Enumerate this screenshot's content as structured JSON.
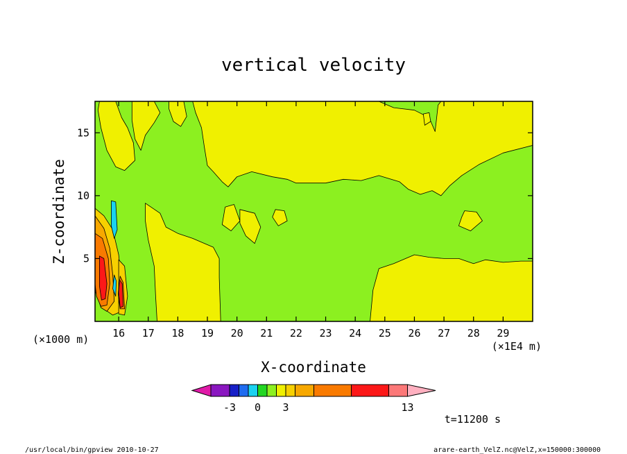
{
  "chart_data": {
    "type": "heatmap",
    "subtype": "filled-contour",
    "title": "vertical velocity",
    "xlabel": "X-coordinate",
    "ylabel": "Z-coordinate",
    "x_units_left": "(×1000 m)",
    "x_units_right": "(×1E4 m)",
    "xlim": [
      15.2,
      30.0
    ],
    "ylim": [
      0.0,
      17.5
    ],
    "x_ticks": [
      16,
      17,
      18,
      19,
      20,
      21,
      22,
      23,
      24,
      25,
      26,
      27,
      28,
      29
    ],
    "y_ticks": [
      5,
      10,
      15
    ],
    "time_label": "t=11200  s",
    "colorbar": {
      "colors": [
        "#e01aa8",
        "#8a17c0",
        "#1820c8",
        "#1f6cf0",
        "#1ad2f0",
        "#22d622",
        "#8cf020",
        "#f0f000",
        "#f7d000",
        "#f7a800",
        "#f97a00",
        "#fc1818",
        "#fc7878",
        "#ffb0c0"
      ],
      "widths": [
        2,
        2,
        1,
        1,
        1,
        1,
        1,
        1,
        1,
        2,
        4,
        4,
        2,
        3
      ],
      "labels": [
        {
          "text": "-3",
          "index": 2
        },
        {
          "text": "0",
          "index": 5
        },
        {
          "text": "3",
          "index": 8
        },
        {
          "text": "13",
          "index": 13
        }
      ]
    },
    "regions": [
      {
        "level": "0",
        "color": "#8cf020",
        "points": [
          [
            15.2,
            17.5
          ],
          [
            30,
            17.5
          ],
          [
            30,
            0
          ],
          [
            15.2,
            0
          ]
        ]
      },
      {
        "level": "0",
        "color": "#f0f000",
        "points": [
          [
            15.35,
            17.5
          ],
          [
            15.9,
            17.5
          ],
          [
            16.1,
            16.2
          ],
          [
            16.3,
            15.4
          ],
          [
            16.5,
            14.2
          ],
          [
            16.55,
            12.8
          ],
          [
            16.2,
            12.0
          ],
          [
            15.9,
            12.3
          ],
          [
            15.6,
            13.6
          ],
          [
            15.4,
            15.4
          ],
          [
            15.3,
            16.8
          ]
        ]
      },
      {
        "level": "0",
        "color": "#f0f000",
        "points": [
          [
            16.45,
            17.5
          ],
          [
            17.2,
            17.5
          ],
          [
            17.4,
            16.6
          ],
          [
            17.2,
            15.8
          ],
          [
            16.9,
            14.8
          ],
          [
            16.75,
            13.6
          ],
          [
            16.55,
            14.5
          ],
          [
            16.45,
            16.0
          ]
        ]
      },
      {
        "level": "0",
        "color": "#f0f000",
        "points": [
          [
            17.7,
            17.5
          ],
          [
            18.2,
            17.5
          ],
          [
            18.3,
            16.3
          ],
          [
            18.1,
            15.5
          ],
          [
            17.85,
            15.9
          ],
          [
            17.7,
            16.9
          ]
        ]
      },
      {
        "level": "0",
        "color": "#f0f000",
        "points": [
          [
            18.5,
            17.5
          ],
          [
            24.8,
            17.5
          ],
          [
            25.3,
            17.0
          ],
          [
            26.0,
            16.8
          ],
          [
            26.5,
            16.2
          ],
          [
            26.7,
            15.1
          ],
          [
            26.8,
            17.2
          ],
          [
            26.9,
            17.5
          ],
          [
            30,
            17.5
          ],
          [
            30,
            14.0
          ],
          [
            29.0,
            13.4
          ],
          [
            28.2,
            12.5
          ],
          [
            27.6,
            11.6
          ],
          [
            27.2,
            10.8
          ],
          [
            26.9,
            10.0
          ],
          [
            26.6,
            10.4
          ],
          [
            26.2,
            10.1
          ],
          [
            25.8,
            10.5
          ],
          [
            25.5,
            11.1
          ],
          [
            24.8,
            11.6
          ],
          [
            24.2,
            11.2
          ],
          [
            23.6,
            11.3
          ],
          [
            23.0,
            11.0
          ],
          [
            22.5,
            11.0
          ],
          [
            22.0,
            11.0
          ],
          [
            21.7,
            11.3
          ],
          [
            21.2,
            11.5
          ],
          [
            20.5,
            11.9
          ],
          [
            20.0,
            11.5
          ],
          [
            19.7,
            10.7
          ],
          [
            19.5,
            11.1
          ],
          [
            19.2,
            11.9
          ],
          [
            19.0,
            12.4
          ],
          [
            18.9,
            13.8
          ],
          [
            18.8,
            15.4
          ],
          [
            18.6,
            16.6
          ]
        ]
      },
      {
        "level": "0",
        "color": "#f0f000",
        "points": [
          [
            16.9,
            9.4
          ],
          [
            17.4,
            8.6
          ],
          [
            17.6,
            7.5
          ],
          [
            18.0,
            7.0
          ],
          [
            18.5,
            6.6
          ],
          [
            18.8,
            6.3
          ],
          [
            19.2,
            5.9
          ],
          [
            19.4,
            5.0
          ],
          [
            19.4,
            3.5
          ],
          [
            19.45,
            0
          ],
          [
            17.3,
            0
          ],
          [
            17.25,
            2.0
          ],
          [
            17.2,
            4.4
          ],
          [
            17.0,
            6.5
          ],
          [
            16.9,
            8.0
          ]
        ]
      },
      {
        "level": "0",
        "color": "#f0f000",
        "points": [
          [
            24.5,
            0
          ],
          [
            24.6,
            2.5
          ],
          [
            24.8,
            4.2
          ],
          [
            25.3,
            4.6
          ],
          [
            26.0,
            5.3
          ],
          [
            26.5,
            5.1
          ],
          [
            27.0,
            5.0
          ],
          [
            27.5,
            5.0
          ],
          [
            28.0,
            4.6
          ],
          [
            28.4,
            4.9
          ],
          [
            29.0,
            4.7
          ],
          [
            29.6,
            4.8
          ],
          [
            30,
            4.8
          ],
          [
            30,
            0
          ]
        ]
      },
      {
        "level": "0",
        "color": "#f0f000",
        "points": [
          [
            19.6,
            9.1
          ],
          [
            19.9,
            9.3
          ],
          [
            20.1,
            8.0
          ],
          [
            19.8,
            7.2
          ],
          [
            19.5,
            7.7
          ]
        ]
      },
      {
        "level": "0",
        "color": "#f0f000",
        "points": [
          [
            20.1,
            8.9
          ],
          [
            20.6,
            8.6
          ],
          [
            20.8,
            7.5
          ],
          [
            20.6,
            6.2
          ],
          [
            20.3,
            6.8
          ],
          [
            20.1,
            7.8
          ]
        ]
      },
      {
        "level": "0",
        "color": "#f0f000",
        "points": [
          [
            21.3,
            8.9
          ],
          [
            21.6,
            8.8
          ],
          [
            21.7,
            8.0
          ],
          [
            21.4,
            7.6
          ],
          [
            21.2,
            8.3
          ]
        ]
      },
      {
        "level": "0",
        "color": "#f0f000",
        "points": [
          [
            27.7,
            8.8
          ],
          [
            28.1,
            8.7
          ],
          [
            28.3,
            8.0
          ],
          [
            27.9,
            7.2
          ],
          [
            27.5,
            7.6
          ],
          [
            27.6,
            8.3
          ]
        ]
      },
      {
        "level": "0",
        "color": "#f0f000",
        "points": [
          [
            26.3,
            16.5
          ],
          [
            26.5,
            16.6
          ],
          [
            26.55,
            15.9
          ],
          [
            26.35,
            15.6
          ]
        ]
      },
      {
        "level": "1",
        "color": "#f7d000",
        "points": [
          [
            15.2,
            9.0
          ],
          [
            15.5,
            8.4
          ],
          [
            15.8,
            7.3
          ],
          [
            16.0,
            5.3
          ],
          [
            16.1,
            3.0
          ],
          [
            16.2,
            0.9
          ],
          [
            15.8,
            0.5
          ],
          [
            15.5,
            1.0
          ],
          [
            15.2,
            2.4
          ]
        ]
      },
      {
        "level": "1",
        "color": "#f7d000",
        "points": [
          [
            16.0,
            4.9
          ],
          [
            16.2,
            4.4
          ],
          [
            16.3,
            2.0
          ],
          [
            16.2,
            0.5
          ],
          [
            16.0,
            0.6
          ]
        ]
      },
      {
        "level": "2",
        "color": "#f7a800",
        "points": [
          [
            15.2,
            8.4
          ],
          [
            15.5,
            7.4
          ],
          [
            15.7,
            5.8
          ],
          [
            15.8,
            3.7
          ],
          [
            15.85,
            1.6
          ],
          [
            15.6,
            0.8
          ],
          [
            15.4,
            1.1
          ],
          [
            15.2,
            2.6
          ]
        ]
      },
      {
        "level": "3",
        "color": "#f97a00",
        "points": [
          [
            15.2,
            7.0
          ],
          [
            15.45,
            6.6
          ],
          [
            15.65,
            5.0
          ],
          [
            15.7,
            3.0
          ],
          [
            15.6,
            1.3
          ],
          [
            15.4,
            1.2
          ],
          [
            15.25,
            2.0
          ],
          [
            15.2,
            3.0
          ]
        ]
      },
      {
        "level": "3",
        "color": "#f97a00",
        "points": [
          [
            16.05,
            3.6
          ],
          [
            16.15,
            3.1
          ],
          [
            16.2,
            1.0
          ],
          [
            16.05,
            1.0
          ],
          [
            15.98,
            2.2
          ]
        ]
      },
      {
        "level": "4",
        "color": "#fc1818",
        "points": [
          [
            15.35,
            5.2
          ],
          [
            15.5,
            5.0
          ],
          [
            15.6,
            3.0
          ],
          [
            15.55,
            1.8
          ],
          [
            15.42,
            1.7
          ],
          [
            15.35,
            2.8
          ]
        ]
      },
      {
        "level": "4",
        "color": "#fc1818",
        "points": [
          [
            16.03,
            3.3
          ],
          [
            16.12,
            3.0
          ],
          [
            16.15,
            1.2
          ],
          [
            16.05,
            1.1
          ],
          [
            16.0,
            2.3
          ]
        ]
      },
      {
        "level": "-1",
        "color": "#1ad2f0",
        "points": [
          [
            15.75,
            9.6
          ],
          [
            15.9,
            9.5
          ],
          [
            15.95,
            7.3
          ],
          [
            15.85,
            6.6
          ],
          [
            15.75,
            7.6
          ]
        ]
      },
      {
        "level": "-1",
        "color": "#1ad2f0",
        "points": [
          [
            15.85,
            3.7
          ],
          [
            15.92,
            3.2
          ],
          [
            15.9,
            2.0
          ],
          [
            15.8,
            2.6
          ]
        ]
      }
    ]
  },
  "footer": {
    "left": "/usr/local/bin/gpview  2010-10-27",
    "right": "arare-earth_VelZ.nc@VelZ,x=150000:300000"
  }
}
